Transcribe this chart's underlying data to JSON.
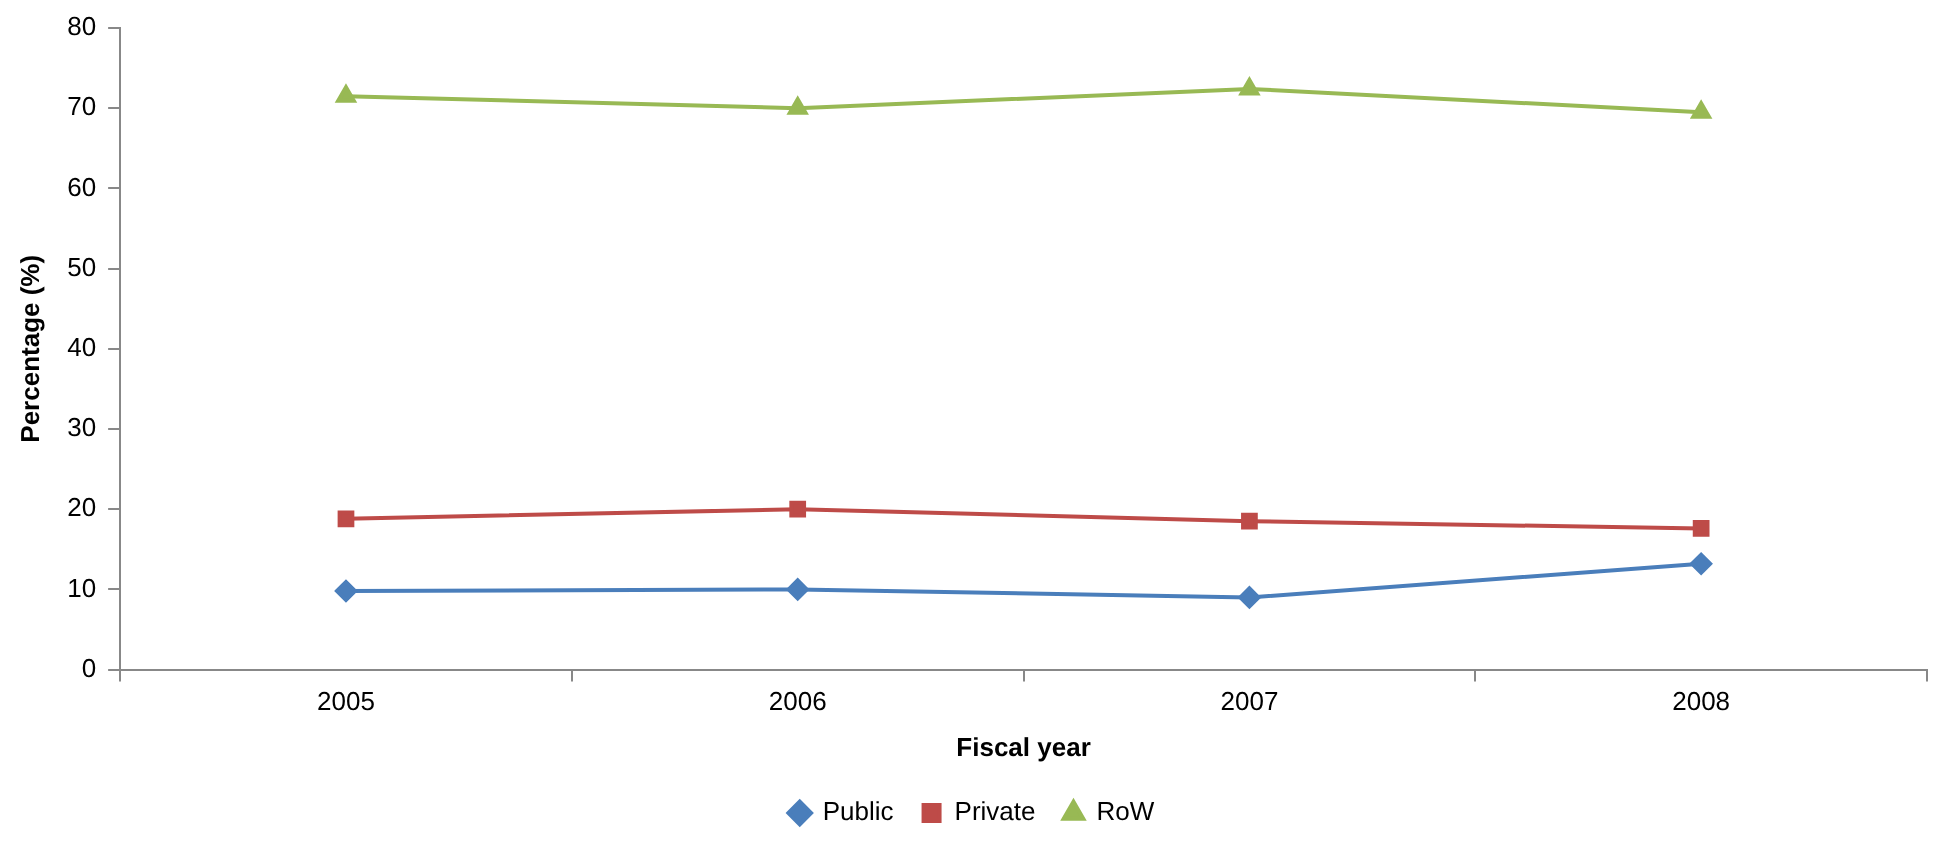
{
  "chart_data": {
    "type": "line",
    "xlabel": "Fiscal year",
    "ylabel": "Percentage (%)",
    "categories": [
      "2005",
      "2006",
      "2007",
      "2008"
    ],
    "series": [
      {
        "name": "Public",
        "color": "#4a7ebb",
        "marker": "diamond",
        "values": [
          9.8,
          10.0,
          9.0,
          13.2
        ]
      },
      {
        "name": "Private",
        "color": "#be4b48",
        "marker": "square",
        "values": [
          18.8,
          20.0,
          18.5,
          17.6
        ]
      },
      {
        "name": "RoW",
        "color": "#98b954",
        "marker": "triangle",
        "values": [
          71.5,
          70.0,
          72.4,
          69.5
        ]
      }
    ],
    "ylim": [
      0,
      80
    ],
    "yticks": [
      0,
      10,
      20,
      30,
      40,
      50,
      60,
      70,
      80
    ],
    "grid": false,
    "legend": "bottom",
    "line_style": "solid"
  }
}
